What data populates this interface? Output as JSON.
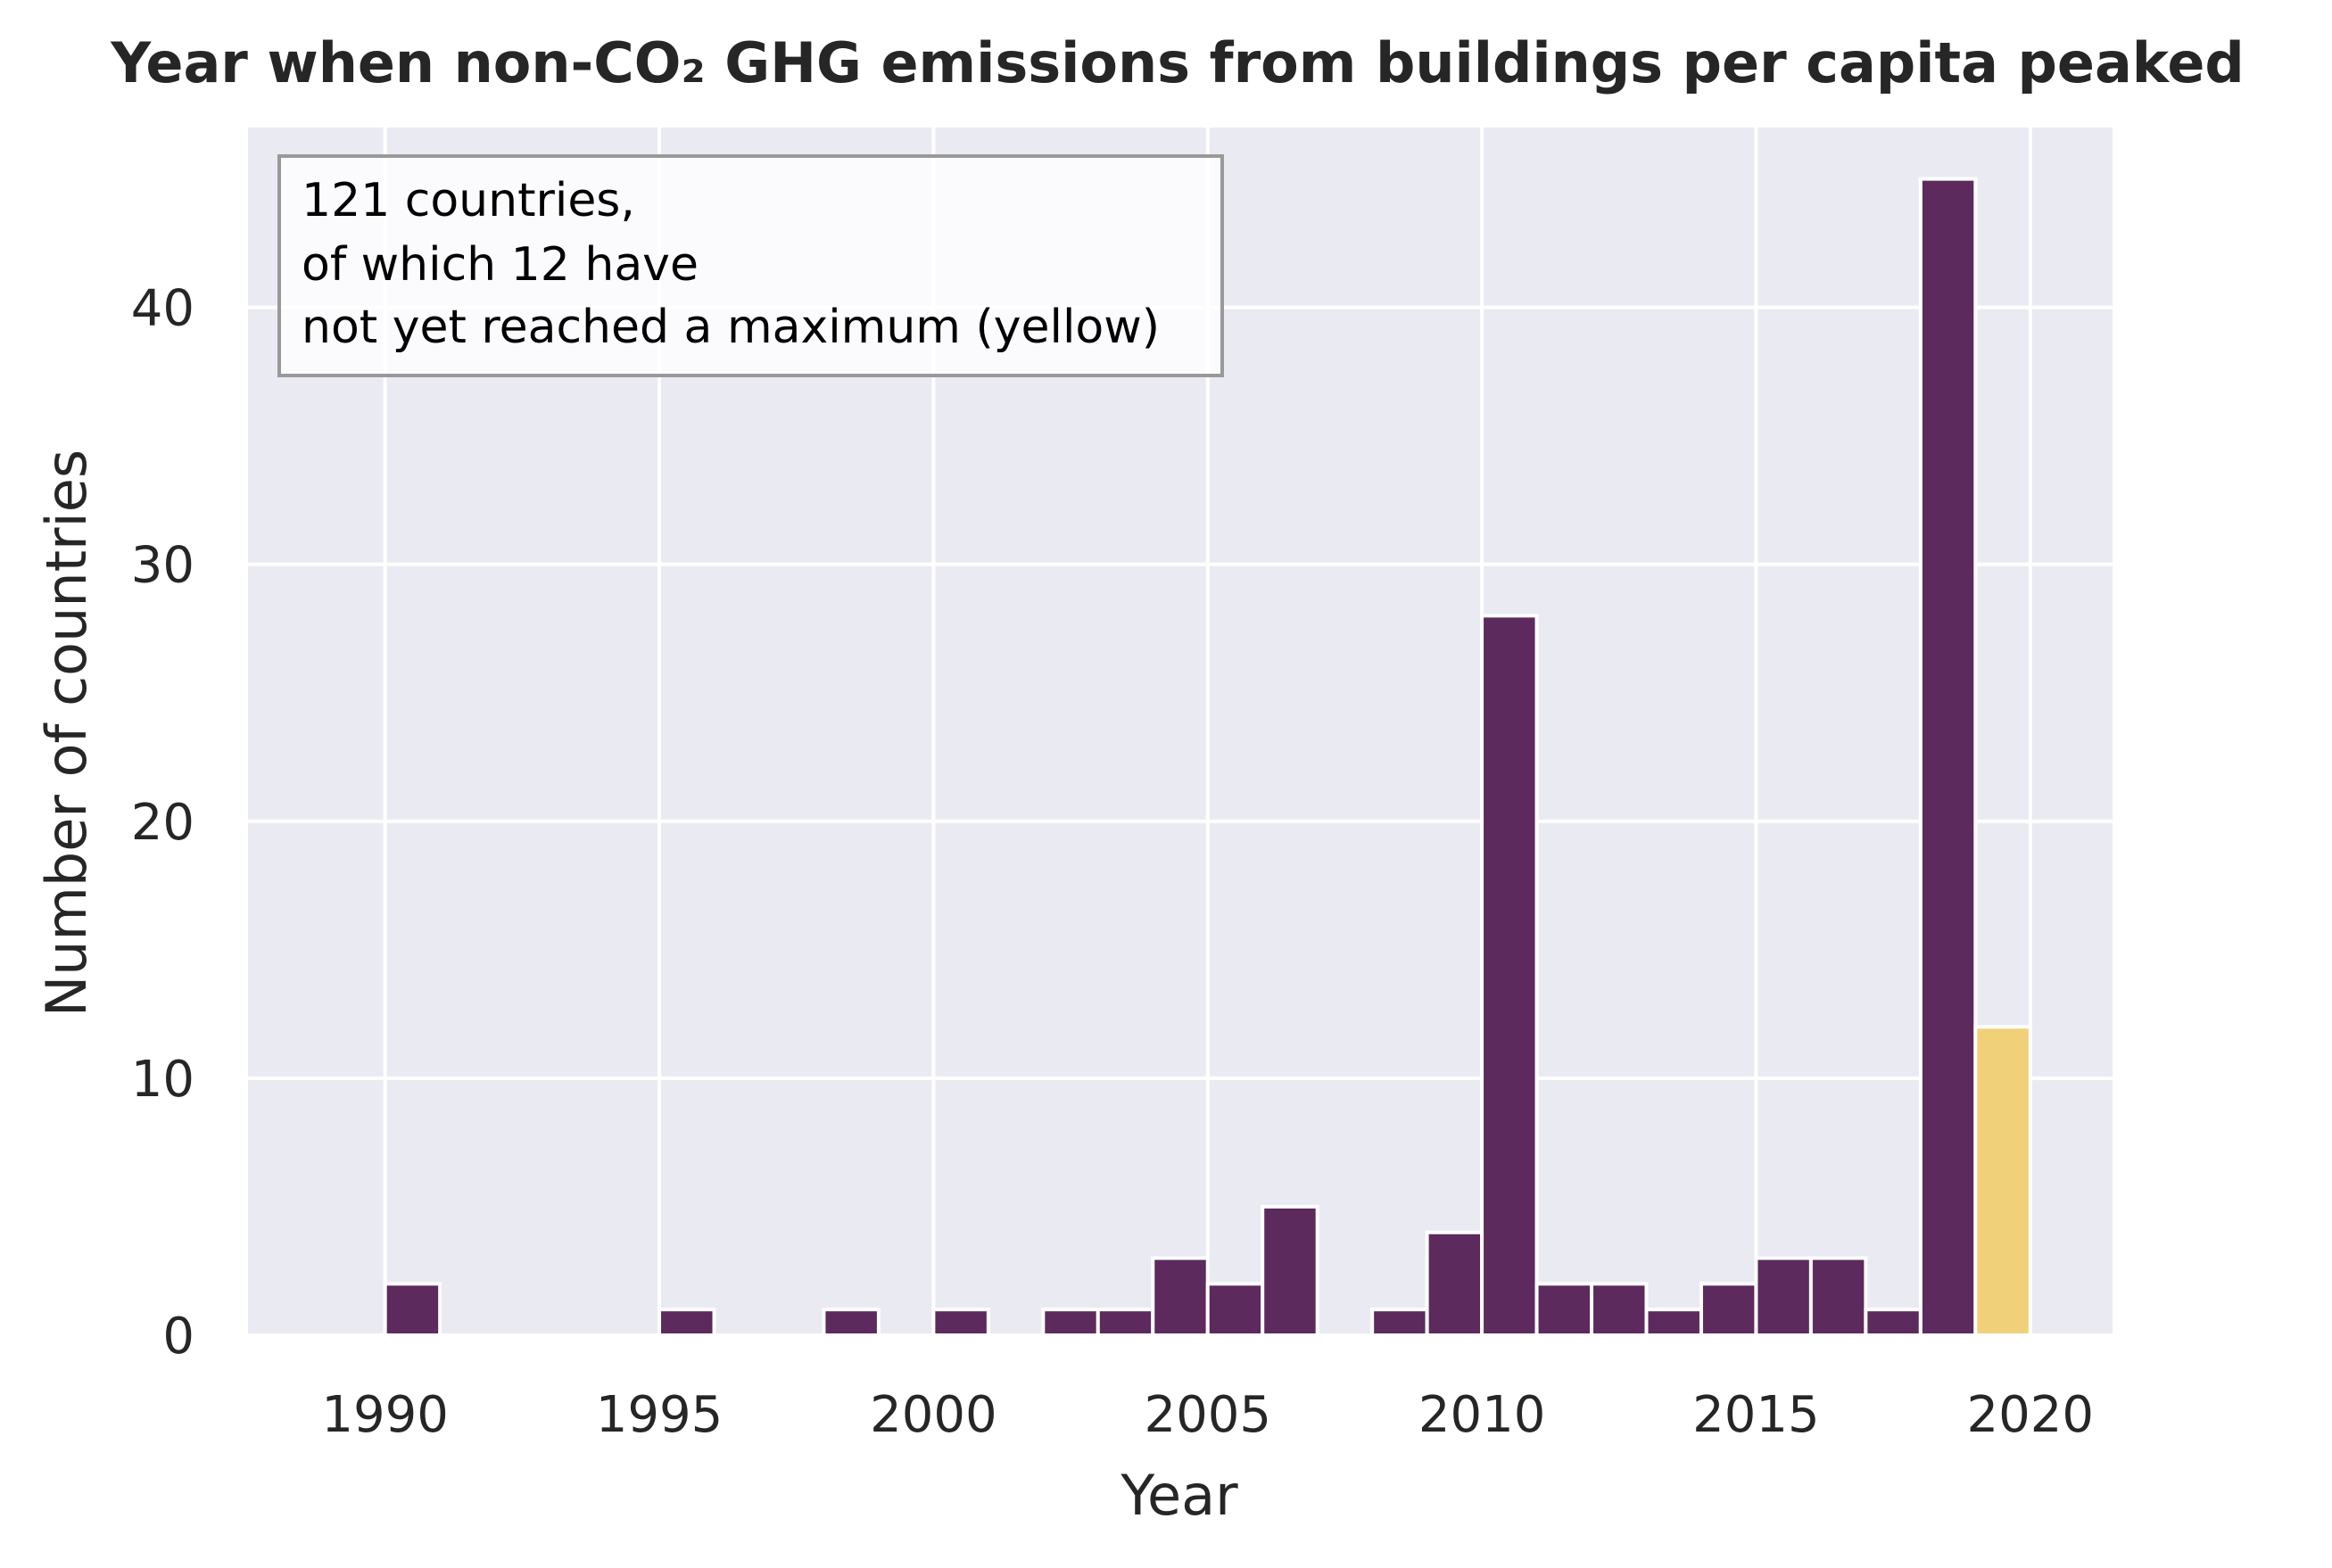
{
  "chart_data": {
    "type": "bar",
    "title": "Year when non-CO₂ GHG emissions from buildings per capita peaked",
    "xlabel": "Year",
    "ylabel": "Number of countries",
    "xlim": [
      1987.5,
      2021.5
    ],
    "ylim": [
      0,
      47
    ],
    "xticks": [
      "1990",
      "1995",
      "2000",
      "2005",
      "2010",
      "2015",
      "2020"
    ],
    "yticks": [
      "0",
      "10",
      "20",
      "30",
      "40"
    ],
    "grid": true,
    "annotation": [
      "121 countries,",
      "of which 12 have",
      "not yet reached a maximum (yellow)"
    ],
    "series": [
      {
        "color": "#5c2a5d",
        "bins": [
          {
            "start": 1990,
            "end": 1991,
            "value": 2
          },
          {
            "start": 1995,
            "end": 1996,
            "value": 1
          },
          {
            "start": 1998,
            "end": 1999,
            "value": 1
          },
          {
            "start": 2000,
            "end": 2001,
            "value": 1
          },
          {
            "start": 2002,
            "end": 2003,
            "value": 1
          },
          {
            "start": 2003,
            "end": 2004,
            "value": 1
          },
          {
            "start": 2004,
            "end": 2005,
            "value": 3
          },
          {
            "start": 2005,
            "end": 2006,
            "value": 2
          },
          {
            "start": 2006,
            "end": 2007,
            "value": 5
          },
          {
            "start": 2008,
            "end": 2009,
            "value": 1
          },
          {
            "start": 2009,
            "end": 2010,
            "value": 4
          },
          {
            "start": 2010,
            "end": 2011,
            "value": 28
          },
          {
            "start": 2011,
            "end": 2012,
            "value": 2
          },
          {
            "start": 2012,
            "end": 2013,
            "value": 2
          },
          {
            "start": 2013,
            "end": 2014,
            "value": 1
          },
          {
            "start": 2014,
            "end": 2015,
            "value": 2
          },
          {
            "start": 2015,
            "end": 2016,
            "value": 3
          },
          {
            "start": 2016,
            "end": 2017,
            "value": 3
          },
          {
            "start": 2017,
            "end": 2018,
            "value": 1
          },
          {
            "start": 2018,
            "end": 2019,
            "value": 45
          }
        ]
      },
      {
        "color": "#f1d07a",
        "bins": [
          {
            "start": 2019,
            "end": 2020,
            "value": 12
          }
        ]
      }
    ],
    "colors": {
      "background": "#eaeaf2",
      "grid": "#ffffff",
      "text": "#262626"
    }
  }
}
